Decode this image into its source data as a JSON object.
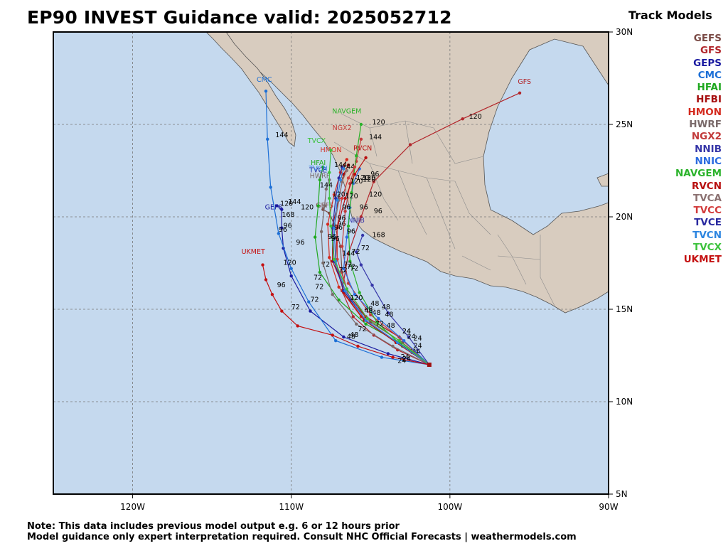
{
  "title": "EP90 INVEST Guidance valid: 2025052712",
  "legend": {
    "title": "Track Models",
    "items": [
      {
        "name": "GEFS",
        "color": "#7a4a45"
      },
      {
        "name": "GFS",
        "color": "#b2262b"
      },
      {
        "name": "GEPS",
        "color": "#1a1aa0"
      },
      {
        "name": "CMC",
        "color": "#1c6fd6"
      },
      {
        "name": "HFAI",
        "color": "#1fa81f"
      },
      {
        "name": "HFBI",
        "color": "#a60f0f"
      },
      {
        "name": "HMON",
        "color": "#d42a1e"
      },
      {
        "name": "HWRF",
        "color": "#7a6a6a"
      },
      {
        "name": "NGX2",
        "color": "#c23a3a"
      },
      {
        "name": "NNIB",
        "color": "#3636a8"
      },
      {
        "name": "NNIC",
        "color": "#2b6be0"
      },
      {
        "name": "NAVGEM",
        "color": "#2bb32b"
      },
      {
        "name": "RVCN",
        "color": "#b80f0f"
      },
      {
        "name": "TVCA",
        "color": "#8a7070"
      },
      {
        "name": "TVCC",
        "color": "#d23b3b"
      },
      {
        "name": "TVCE",
        "color": "#2a2aa0"
      },
      {
        "name": "TVCN",
        "color": "#2c85e0"
      },
      {
        "name": "TVCX",
        "color": "#3cc23c"
      },
      {
        "name": "UKMET",
        "color": "#c41010"
      }
    ]
  },
  "map": {
    "lon_range": [
      -125,
      -90
    ],
    "lat_range": [
      5,
      30
    ],
    "lon_ticks": [
      {
        "v": -120,
        "t": "120W"
      },
      {
        "v": -110,
        "t": "110W"
      },
      {
        "v": -100,
        "t": "100W"
      },
      {
        "v": -90,
        "t": "90W"
      }
    ],
    "lat_ticks": [
      {
        "v": 5,
        "t": "5N"
      },
      {
        "v": 10,
        "t": "10N"
      },
      {
        "v": 15,
        "t": "15N"
      },
      {
        "v": 20,
        "t": "20N"
      },
      {
        "v": 25,
        "t": "25N"
      },
      {
        "v": 30,
        "t": "30N"
      }
    ],
    "ocean_color": "#c5d9ee",
    "land_color": "#d8ccbf",
    "start": [
      -101.3,
      12.0
    ]
  },
  "tracks": [
    {
      "name": "GEFS",
      "color": "#7a4a45",
      "points": [
        [
          -101.3,
          12.0
        ],
        [
          -103.0,
          13.2
        ],
        [
          -105.0,
          14.3
        ],
        [
          -106.3,
          15.5
        ],
        [
          -106.8,
          17.0
        ],
        [
          -106.9,
          18.4
        ],
        [
          -107.3,
          19.6
        ],
        [
          -107.6,
          20.2
        ],
        [
          -108.0,
          20.4
        ]
      ],
      "labels": [
        [
          -102.5,
          12.6,
          "24"
        ],
        [
          -104.9,
          14.7,
          "48"
        ],
        [
          -106.5,
          17.2,
          "72"
        ],
        [
          -107.1,
          19.5,
          "96"
        ],
        [
          -107.9,
          20.5,
          "GEFS"
        ]
      ]
    },
    {
      "name": "GFS",
      "color": "#b2262b",
      "points": [
        [
          -101.3,
          12.0
        ],
        [
          -103.3,
          12.8
        ],
        [
          -104.8,
          13.6
        ],
        [
          -106.1,
          14.6
        ],
        [
          -106.8,
          16.0
        ],
        [
          -106.4,
          18.0
        ],
        [
          -105.6,
          20.0
        ],
        [
          -104.8,
          21.9
        ],
        [
          -102.5,
          23.9
        ],
        [
          -99.2,
          25.3
        ],
        [
          -95.6,
          26.7
        ]
      ],
      "labels": [
        [
          -102.4,
          12.6,
          "24"
        ],
        [
          -106.2,
          15.8,
          ""
        ],
        [
          -105.5,
          21.9,
          "120"
        ],
        [
          -98.8,
          25.3,
          "120"
        ],
        [
          -95.3,
          27.2,
          "GFS"
        ]
      ]
    },
    {
      "name": "GEPS",
      "color": "#1a1aa0",
      "points": [
        [
          -101.3,
          12.0
        ],
        [
          -103.9,
          12.6
        ],
        [
          -106.7,
          13.5
        ],
        [
          -108.8,
          14.9
        ],
        [
          -110.0,
          16.8
        ],
        [
          -110.5,
          18.3
        ],
        [
          -110.6,
          19.4
        ],
        [
          -110.6,
          20.4
        ],
        [
          -110.9,
          20.6
        ]
      ],
      "labels": [
        [
          -103.1,
          12.3,
          "24"
        ],
        [
          -106.3,
          13.5,
          "48"
        ],
        [
          -108.8,
          15.4,
          "72"
        ],
        [
          -110.5,
          19.4,
          "96"
        ],
        [
          -110.7,
          20.6,
          "120"
        ],
        [
          -111.1,
          20.4,
          "GEPS"
        ]
      ]
    },
    {
      "name": "CMC",
      "color": "#1c6fd6",
      "points": [
        [
          -101.3,
          12.0
        ],
        [
          -104.3,
          12.4
        ],
        [
          -107.2,
          13.3
        ],
        [
          -108.9,
          15.4
        ],
        [
          -110.0,
          17.2
        ],
        [
          -110.8,
          19.1
        ],
        [
          -111.3,
          21.6
        ],
        [
          -111.5,
          24.2
        ],
        [
          -111.6,
          26.8
        ]
      ],
      "labels": [
        [
          -103.0,
          12.2,
          "24"
        ],
        [
          -109.0,
          17.3,
          ""
        ],
        [
          -110.8,
          19.2,
          "96"
        ],
        [
          -111.0,
          24.3,
          "144"
        ],
        [
          -111.7,
          27.3,
          "CMC"
        ]
      ]
    },
    {
      "name": "HFAI",
      "color": "#1fa81f",
      "points": [
        [
          -101.3,
          12.0
        ],
        [
          -103.2,
          13.2
        ],
        [
          -105.3,
          14.2
        ],
        [
          -107.0,
          15.5
        ],
        [
          -108.2,
          17.0
        ],
        [
          -108.5,
          18.9
        ],
        [
          -108.3,
          20.6
        ],
        [
          -108.2,
          22.0
        ],
        [
          -108.0,
          22.7
        ]
      ],
      "labels": [
        [
          -103.0,
          13.7,
          "24"
        ],
        [
          -108.1,
          17.3,
          "72"
        ],
        [
          -108.3,
          22.8,
          "HFAI"
        ]
      ]
    },
    {
      "name": "HFBI",
      "color": "#a60f0f",
      "points": [
        [
          -101.3,
          12.0
        ],
        [
          -103.2,
          13.5
        ],
        [
          -105.3,
          14.6
        ],
        [
          -106.6,
          16.0
        ],
        [
          -107.4,
          17.6
        ],
        [
          -107.4,
          19.5
        ],
        [
          -107.0,
          21.0
        ],
        [
          -106.7,
          22.3
        ],
        [
          -106.4,
          22.8
        ]
      ],
      "labels": [
        [
          -105.4,
          14.9,
          "48"
        ],
        [
          -106.8,
          22.6,
          "144"
        ]
      ]
    },
    {
      "name": "HMON",
      "color": "#d42a1e",
      "points": [
        [
          -101.3,
          12.0
        ],
        [
          -103.4,
          13.2
        ],
        [
          -105.6,
          14.6
        ],
        [
          -107.0,
          16.2
        ],
        [
          -107.6,
          17.8
        ],
        [
          -107.7,
          19.6
        ],
        [
          -107.3,
          21.2
        ],
        [
          -106.9,
          22.4
        ],
        [
          -106.5,
          23.1
        ]
      ],
      "labels": [
        [
          -107.5,
          23.5,
          "HMON"
        ]
      ]
    },
    {
      "name": "HWRF",
      "color": "#7a6a6a",
      "points": [
        [
          -101.3,
          12.0
        ],
        [
          -103.6,
          13.0
        ],
        [
          -105.9,
          14.2
        ],
        [
          -107.4,
          15.8
        ],
        [
          -108.0,
          17.5
        ],
        [
          -108.1,
          19.2
        ],
        [
          -107.9,
          20.6
        ],
        [
          -107.8,
          21.5
        ],
        [
          -107.6,
          22.0
        ]
      ],
      "labels": [
        [
          -108.2,
          22.1,
          "HWRF"
        ]
      ]
    },
    {
      "name": "NGX2",
      "color": "#c23a3a",
      "points": [
        [
          -101.3,
          12.0
        ],
        [
          -103.1,
          13.4
        ],
        [
          -105.0,
          14.7
        ],
        [
          -106.4,
          16.4
        ],
        [
          -106.8,
          18.4
        ],
        [
          -106.6,
          20.3
        ],
        [
          -106.3,
          21.8
        ],
        [
          -105.9,
          23.0
        ],
        [
          -105.6,
          24.2
        ]
      ],
      "labels": [
        [
          -106.8,
          24.7,
          "NGX2"
        ],
        [
          -105.1,
          24.2,
          "144"
        ]
      ]
    },
    {
      "name": "NNIB",
      "color": "#3636a8",
      "points": [
        [
          -101.3,
          12.0
        ],
        [
          -102.6,
          13.5
        ],
        [
          -103.9,
          14.8
        ],
        [
          -104.9,
          16.3
        ],
        [
          -105.6,
          17.4
        ],
        [
          -105.9,
          18.1
        ],
        [
          -105.5,
          19.0
        ]
      ],
      "labels": [
        [
          -105.9,
          19.7,
          "NNIB"
        ],
        [
          -104.9,
          18.9,
          "168"
        ],
        [
          -105.6,
          18.2,
          "72"
        ]
      ]
    },
    {
      "name": "NNIC",
      "color": "#2b6be0",
      "points": [
        [
          -101.3,
          12.0
        ],
        [
          -102.9,
          13.3
        ],
        [
          -104.5,
          14.5
        ],
        [
          -106.0,
          15.8
        ],
        [
          -106.7,
          17.2
        ],
        [
          -106.5,
          18.9
        ],
        [
          -106.3,
          20.5
        ],
        [
          -106.1,
          21.8
        ],
        [
          -105.7,
          22.6
        ]
      ],
      "labels": [
        [
          -106.1,
          22.1,
          ""
        ]
      ]
    },
    {
      "name": "NAVGEM",
      "color": "#2bb32b",
      "points": [
        [
          -101.3,
          12.0
        ],
        [
          -103.0,
          13.0
        ],
        [
          -104.6,
          14.3
        ],
        [
          -105.7,
          15.9
        ],
        [
          -106.3,
          17.6
        ],
        [
          -106.4,
          19.5
        ],
        [
          -106.2,
          21.3
        ],
        [
          -105.9,
          23.3
        ],
        [
          -105.6,
          25.0
        ]
      ],
      "labels": [
        [
          -106.5,
          25.6,
          "NAVGEM"
        ],
        [
          -104.9,
          25.0,
          "120"
        ]
      ]
    },
    {
      "name": "RVCN",
      "color": "#b80f0f",
      "points": [
        [
          -101.3,
          12.0
        ],
        [
          -103.4,
          13.2
        ],
        [
          -105.4,
          14.4
        ],
        [
          -106.7,
          15.9
        ],
        [
          -107.2,
          17.6
        ],
        [
          -107.1,
          19.4
        ],
        [
          -106.6,
          21.0
        ],
        [
          -106.0,
          22.3
        ],
        [
          -105.3,
          23.2
        ]
      ],
      "labels": [
        [
          -105.5,
          23.6,
          "RVCN"
        ]
      ]
    },
    {
      "name": "TVCA",
      "color": "#8a7070",
      "points": [
        [
          -101.3,
          12.0
        ],
        [
          -103.3,
          13.2
        ],
        [
          -105.3,
          14.4
        ],
        [
          -106.6,
          16.0
        ],
        [
          -107.2,
          17.6
        ],
        [
          -107.3,
          19.4
        ],
        [
          -107.0,
          20.9
        ],
        [
          -106.8,
          21.9
        ],
        [
          -106.5,
          22.5
        ]
      ],
      "labels": [
        [
          -106.3,
          21.8,
          "120"
        ]
      ]
    },
    {
      "name": "TVCC",
      "color": "#d23b3b",
      "points": [
        [
          -101.3,
          12.0
        ],
        [
          -103.2,
          13.3
        ],
        [
          -105.2,
          14.5
        ],
        [
          -106.5,
          16.1
        ],
        [
          -107.1,
          17.7
        ],
        [
          -107.1,
          19.5
        ],
        [
          -106.8,
          21.0
        ],
        [
          -106.4,
          22.1
        ],
        [
          -106.0,
          22.7
        ]
      ],
      "labels": [
        [
          -105.9,
          22.0,
          "120"
        ]
      ]
    },
    {
      "name": "TVCE",
      "color": "#2a2aa0",
      "points": [
        [
          -101.3,
          12.0
        ],
        [
          -103.3,
          13.2
        ],
        [
          -105.3,
          14.4
        ],
        [
          -106.7,
          16.0
        ],
        [
          -107.3,
          17.6
        ],
        [
          -107.4,
          19.4
        ],
        [
          -107.2,
          21.0
        ],
        [
          -107.0,
          22.1
        ],
        [
          -106.8,
          22.7
        ]
      ],
      "labels": [
        [
          -108.3,
          22.4,
          "TVCE"
        ]
      ]
    },
    {
      "name": "TVCN",
      "color": "#2c85e0",
      "points": [
        [
          -101.3,
          12.0
        ],
        [
          -103.3,
          13.2
        ],
        [
          -105.3,
          14.4
        ],
        [
          -106.6,
          16.0
        ],
        [
          -107.2,
          17.6
        ],
        [
          -107.3,
          19.4
        ],
        [
          -107.1,
          20.9
        ],
        [
          -106.9,
          22.0
        ],
        [
          -106.7,
          22.6
        ]
      ],
      "labels": [
        [
          -108.3,
          22.5,
          "TVCN"
        ]
      ]
    },
    {
      "name": "TVCX",
      "color": "#3cc23c",
      "points": [
        [
          -101.3,
          12.0
        ],
        [
          -103.2,
          13.3
        ],
        [
          -105.2,
          14.5
        ],
        [
          -106.5,
          16.1
        ],
        [
          -107.3,
          17.7
        ],
        [
          -107.5,
          19.5
        ],
        [
          -107.6,
          21.0
        ],
        [
          -107.6,
          22.4
        ],
        [
          -107.5,
          23.6
        ]
      ],
      "labels": [
        [
          -108.4,
          24.0,
          "TVCX"
        ]
      ]
    },
    {
      "name": "UKMET",
      "color": "#c41010",
      "points": [
        [
          -101.3,
          12.0
        ],
        [
          -103.6,
          12.4
        ],
        [
          -105.8,
          13.0
        ],
        [
          -107.4,
          13.6
        ],
        [
          -109.6,
          14.1
        ],
        [
          -110.6,
          14.9
        ],
        [
          -111.2,
          15.8
        ],
        [
          -111.6,
          16.6
        ],
        [
          -111.8,
          17.4
        ]
      ],
      "labels": [
        [
          -103.3,
          12.1,
          "24"
        ],
        [
          -106.5,
          13.4,
          "48"
        ],
        [
          -110.0,
          15.0,
          "72"
        ],
        [
          -110.9,
          16.2,
          "96"
        ],
        [
          -110.5,
          17.4,
          "120"
        ],
        [
          -112.4,
          18.0,
          "UKMET"
        ]
      ]
    }
  ],
  "extra_labels": [
    [
      -102.3,
      13.3,
      "24"
    ],
    [
      -102.3,
      12.9,
      "24"
    ],
    [
      -103.0,
      13.7,
      "24"
    ],
    [
      -102.7,
      13.4,
      "24"
    ],
    [
      -104.0,
      14.0,
      "48"
    ],
    [
      -104.1,
      14.6,
      "48"
    ],
    [
      -105.0,
      15.2,
      "48"
    ],
    [
      -104.3,
      15.0,
      "48"
    ],
    [
      -105.4,
      14.8,
      "48"
    ],
    [
      -105.8,
      13.8,
      "72"
    ],
    [
      -104.7,
      14.1,
      "72"
    ],
    [
      -106.7,
      17.3,
      "72"
    ],
    [
      -106.3,
      17.1,
      "72"
    ],
    [
      -107.0,
      17.0,
      "72"
    ],
    [
      -108.5,
      16.1,
      "72"
    ],
    [
      -108.6,
      16.6,
      "72"
    ],
    [
      -106.2,
      18.0,
      "72"
    ],
    [
      -106.5,
      19.1,
      "96"
    ],
    [
      -107.1,
      19.8,
      "96"
    ],
    [
      -105.7,
      20.4,
      "96"
    ],
    [
      -106.8,
      20.4,
      "96"
    ],
    [
      -107.7,
      18.8,
      "96"
    ],
    [
      -109.7,
      18.5,
      "96"
    ],
    [
      -107.3,
      19.3,
      "96"
    ],
    [
      -107.5,
      18.7,
      "96"
    ],
    [
      -104.8,
      20.2,
      "96"
    ],
    [
      -105.0,
      22.2,
      "96"
    ],
    [
      -106.6,
      21.0,
      "120"
    ],
    [
      -107.4,
      21.1,
      "120"
    ],
    [
      -105.1,
      21.1,
      "120"
    ],
    [
      -105.5,
      22.0,
      "120"
    ],
    [
      -107.3,
      22.7,
      "144"
    ],
    [
      -108.2,
      21.6,
      "144"
    ],
    [
      -106.8,
      17.9,
      "144"
    ],
    [
      -110.2,
      20.7,
      "144"
    ],
    [
      -109.4,
      20.4,
      "120"
    ],
    [
      -106.3,
      15.5,
      "120"
    ],
    [
      -110.6,
      20.0,
      "168"
    ]
  ],
  "footer": {
    "note": "Note: This data includes previous model output e.g. 6 or 12 hours prior",
    "disclaimer": "Model guidance only expert interpretation required. Consult NHC Official Forecasts | weathermodels.com"
  }
}
